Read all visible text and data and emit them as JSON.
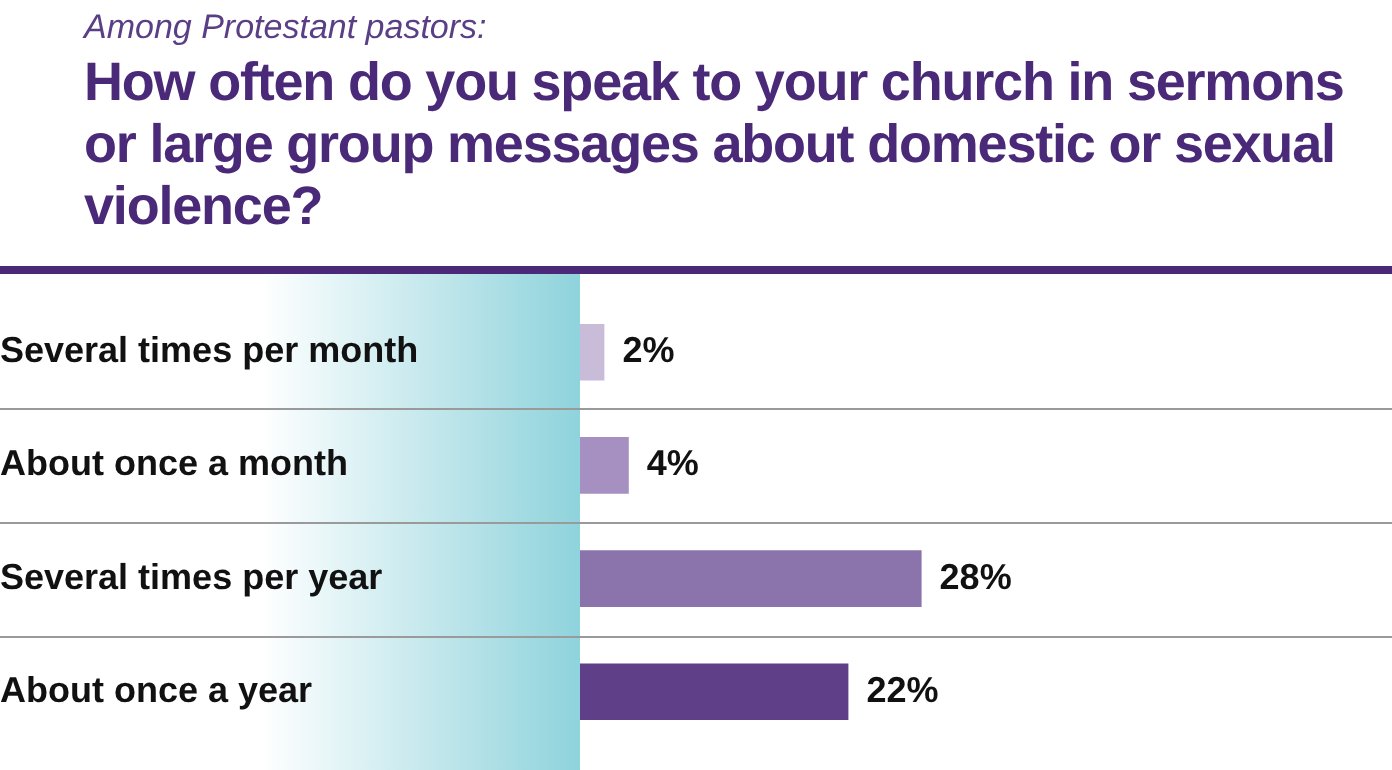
{
  "chart_data": {
    "type": "bar",
    "orientation": "horizontal",
    "subtitle": "Among Protestant pastors:",
    "title": "How often do you speak to your church in sermons or large group messages about domestic or sexual violence?",
    "categories": [
      "Several times per month",
      "About once a month",
      "Several times per year",
      "About once a year"
    ],
    "values": [
      2,
      4,
      28,
      22
    ],
    "colors": [
      "#c8bcd9",
      "#a690c2",
      "#8b74ab",
      "#5e3f88"
    ],
    "value_labels": [
      "2%",
      "4%",
      "28%",
      "22%"
    ],
    "tick_labels": "y"
  }
}
